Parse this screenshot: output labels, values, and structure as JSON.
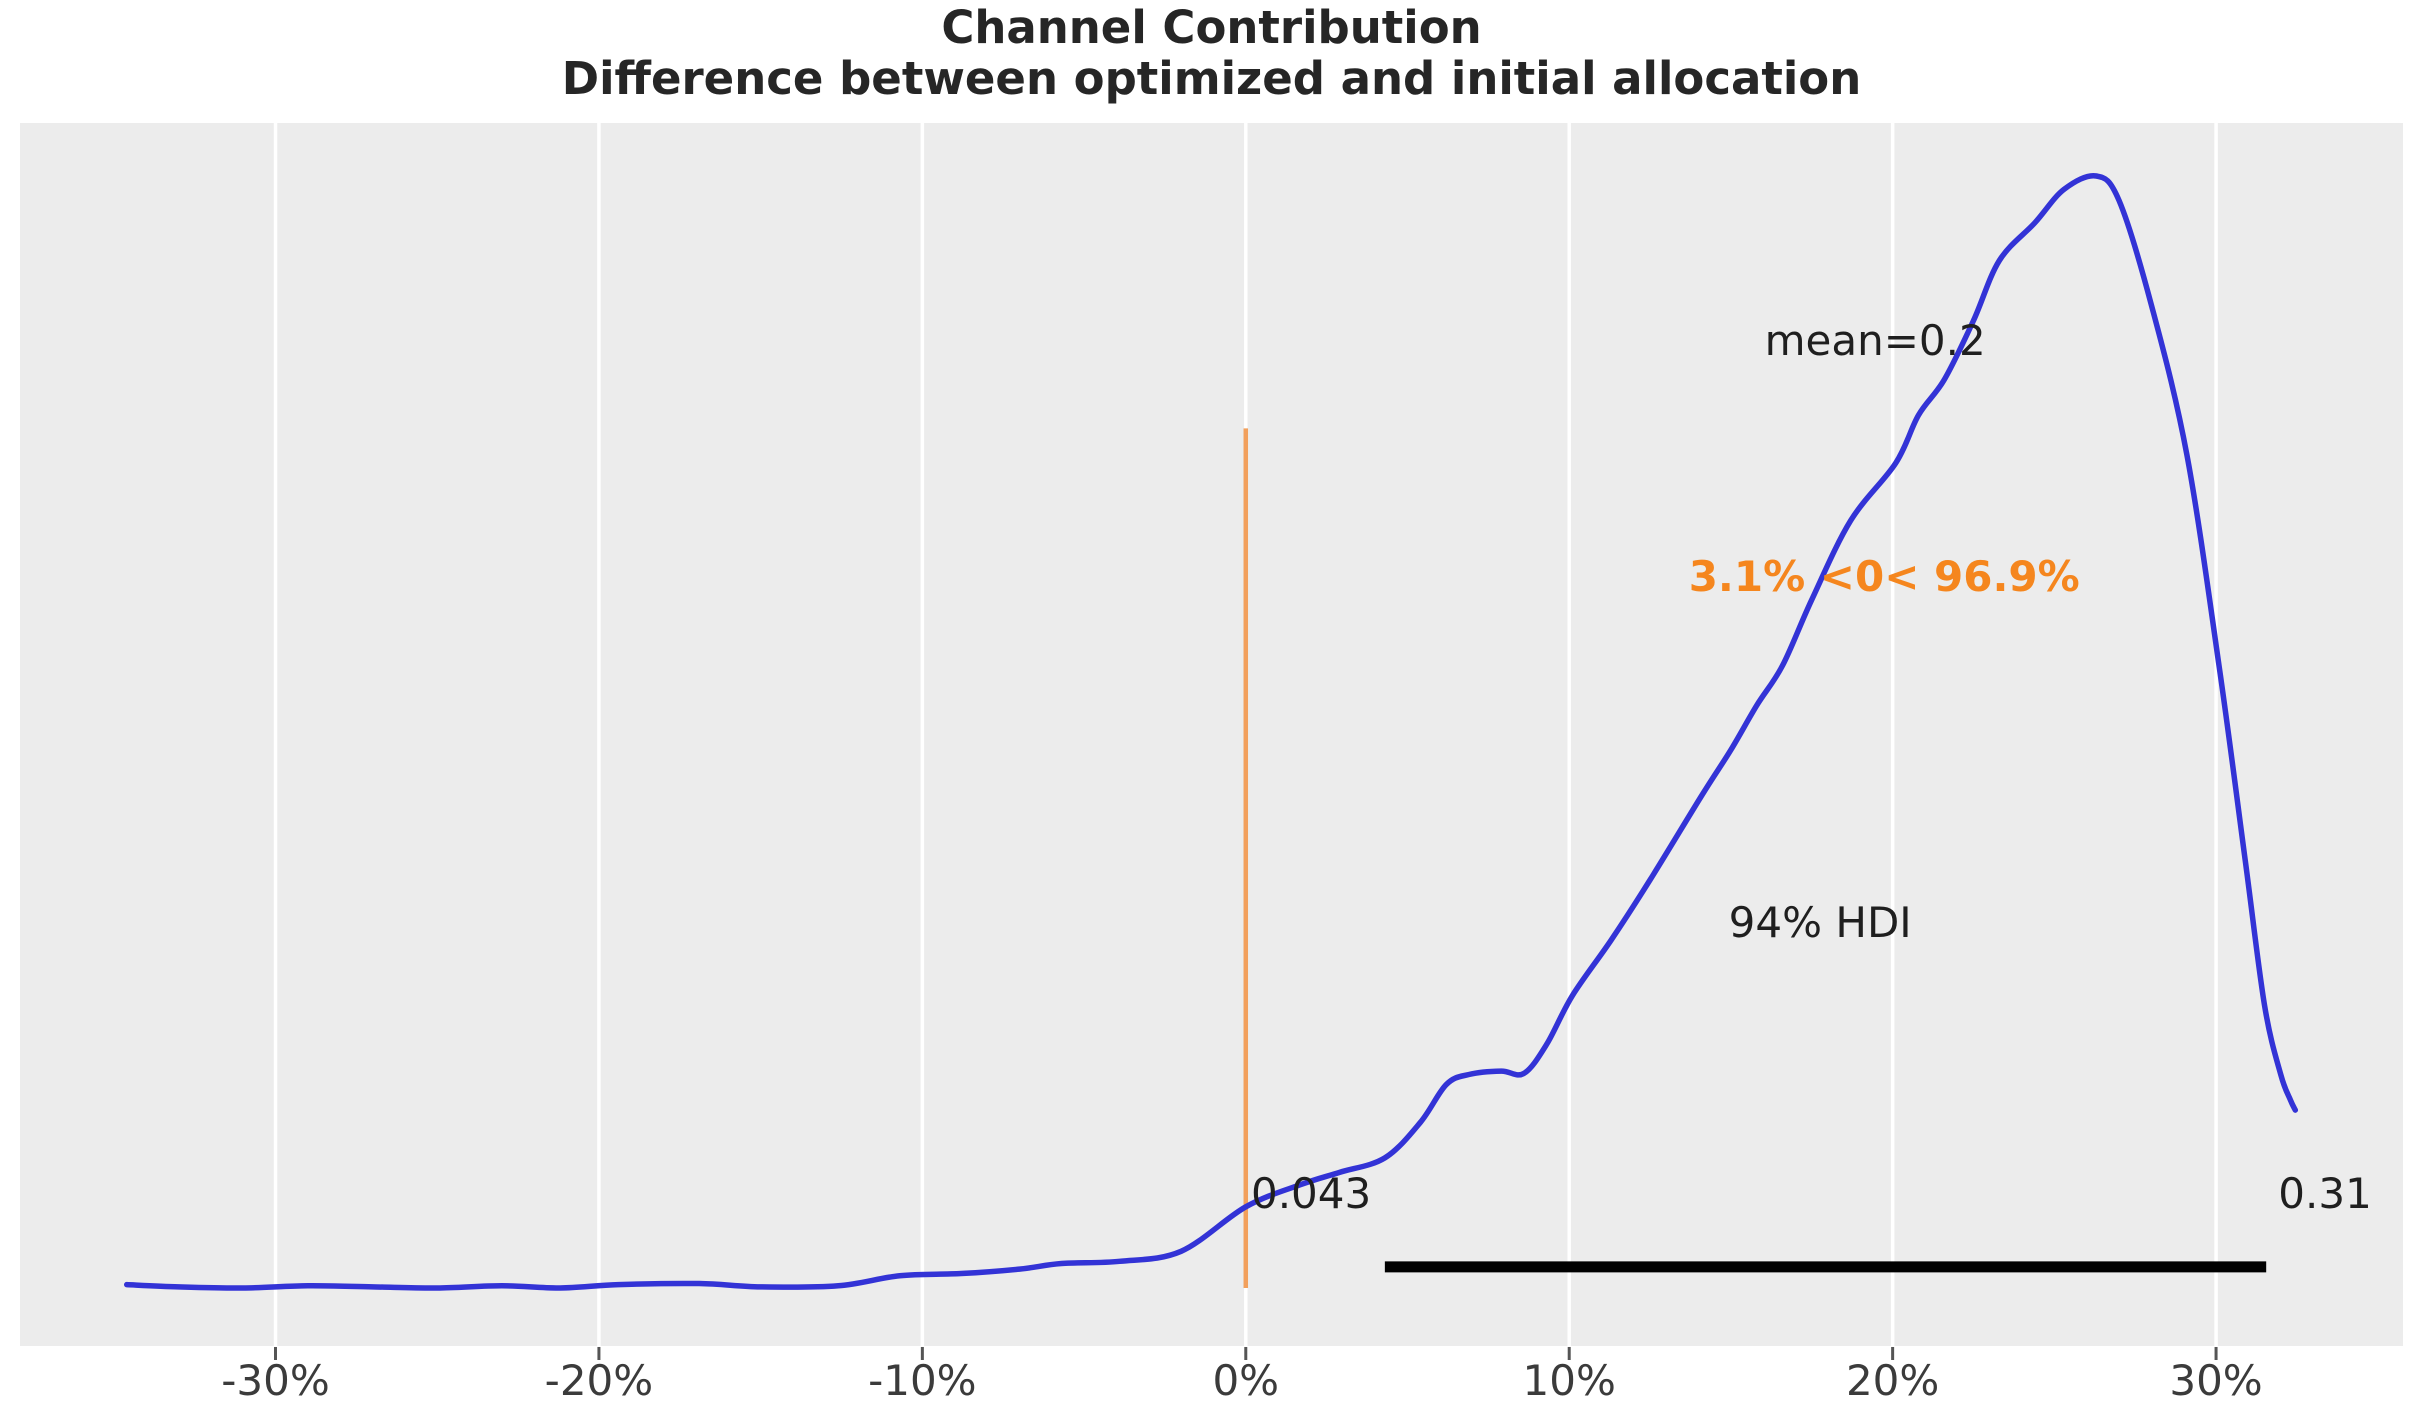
{
  "figure": {
    "title_line1": "Channel Contribution",
    "title_line2": "Difference between optimized and initial allocation"
  },
  "chart_data": {
    "type": "area",
    "subtype": "kde-posterior-density",
    "title": "Channel Contribution",
    "subtitle": "Difference between optimized and initial allocation",
    "xlabel": "",
    "ylabel": "",
    "legend": "none",
    "grid": "vertical-white-gridlines-on-gray",
    "xlim_pct": [
      -37.9,
      35.78
    ],
    "ylim_density": [
      0,
      1.1
    ],
    "x_ticks": [
      {
        "value": -30,
        "label": "-30%"
      },
      {
        "value": -20,
        "label": "-20%"
      },
      {
        "value": -10,
        "label": "-10%"
      },
      {
        "value": 0,
        "label": "0%"
      },
      {
        "value": 10,
        "label": "10%"
      },
      {
        "value": 20,
        "label": "20%"
      },
      {
        "value": 30,
        "label": "30%"
      }
    ],
    "curve": {
      "name": "posterior density of contribution difference",
      "x_pct": [
        -34.6,
        -33,
        -31,
        -29,
        -27,
        -25,
        -23,
        -21.2,
        -19.4,
        -16.9,
        -15,
        -12.6,
        -10.7,
        -8.8,
        -7,
        -5.7,
        -3.9,
        -2,
        0,
        1.7,
        2.9,
        4.3,
        5.4,
        6.2,
        6.9,
        7.9,
        8.6,
        9.3,
        10.1,
        11.3,
        12.5,
        14.1,
        15,
        15.8,
        16.6,
        17.5,
        18.7,
        20.1,
        20.8,
        21.6,
        22.5,
        23.3,
        24.4,
        25.3,
        26.3,
        27,
        28,
        29.1,
        30.1,
        30.9,
        31.5,
        32,
        32.3,
        32.45
      ],
      "density": [
        0.003,
        0.001,
        0.0,
        0.002,
        0.001,
        0.0,
        0.002,
        0.0,
        0.003,
        0.004,
        0.001,
        0.002,
        0.011,
        0.013,
        0.017,
        0.022,
        0.024,
        0.033,
        0.073,
        0.093,
        0.104,
        0.117,
        0.149,
        0.183,
        0.192,
        0.195,
        0.193,
        0.219,
        0.263,
        0.313,
        0.367,
        0.443,
        0.484,
        0.524,
        0.56,
        0.619,
        0.69,
        0.742,
        0.785,
        0.817,
        0.87,
        0.924,
        0.958,
        0.988,
        1.0,
        0.978,
        0.884,
        0.749,
        0.558,
        0.385,
        0.254,
        0.192,
        0.169,
        0.16
      ]
    },
    "reference_line": {
      "x_pct": 0,
      "top_density": 0.773,
      "bottom_density": 0
    },
    "hdi": {
      "probability": "94%",
      "lower": 0.043,
      "upper": 0.31,
      "bar_from_pct": 4.3,
      "bar_to_pct": 31.55,
      "bar_density": 0.019
    },
    "stats": {
      "mean": 0.2,
      "mass_below_zero": "3.1%",
      "mass_above_zero": "96.9%"
    },
    "annotations": {
      "mean": {
        "text": "mean=0.2",
        "x_pct": 19.46,
        "density": 0.8516
      },
      "prob": {
        "text": "3.1% <0< 96.9%",
        "x_pct": 19.74,
        "density": 0.639
      },
      "hdi_label": {
        "text": "94% HDI",
        "x_pct": 17.76,
        "density": 0.328
      },
      "hdi_lower": {
        "text": "0.043",
        "x_pct": 2.02,
        "density": 0.0845
      },
      "hdi_upper": {
        "text": "0.31",
        "x_pct": 33.37,
        "density": 0.0845
      }
    }
  },
  "colors": {
    "curve_blue": "#3333d6",
    "ref_line_orange": "#f2a05c",
    "prob_text_orange": "#f5861e",
    "hdi_bar_black": "#000000",
    "plot_background": "#ececec",
    "gridline_white": "#ffffff",
    "title_text": "#262626",
    "annotation_text": "#1f1f1f",
    "tick_label_text": "#3b3b3b",
    "tick_mark": "#555555"
  }
}
